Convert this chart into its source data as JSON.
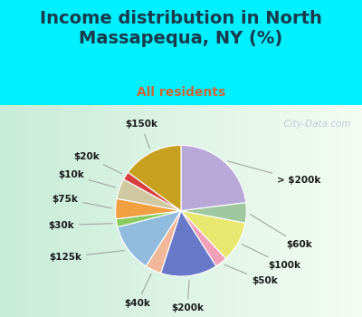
{
  "title": "Income distribution in North\nMassapequa, NY (%)",
  "subtitle": "All residents",
  "labels": [
    "> $200k",
    "$60k",
    "$100k",
    "$50k",
    "$200k",
    "$40k",
    "$125k",
    "$30k",
    "$75k",
    "$10k",
    "$20k",
    "$150k"
  ],
  "sizes": [
    23,
    5,
    10,
    3,
    14,
    4,
    12,
    2,
    5,
    5,
    2,
    15
  ],
  "colors": [
    "#b8a8d8",
    "#a0c8a0",
    "#e8e870",
    "#f0a0b8",
    "#6878c8",
    "#f0b898",
    "#90bbdd",
    "#88cc60",
    "#f0a040",
    "#d0c8a0",
    "#d84040",
    "#c8a020"
  ],
  "label_fontsize": 7.5,
  "title_fontsize": 14,
  "subtitle_fontsize": 10,
  "title_color": "#1a3a4a",
  "subtitle_color": "#cc6633",
  "bg_color_top": "#00f0ff",
  "bg_color_chart_left": "#c8ecd8",
  "bg_color_chart_right": "#f0faf0",
  "watermark": "City-Data.com"
}
